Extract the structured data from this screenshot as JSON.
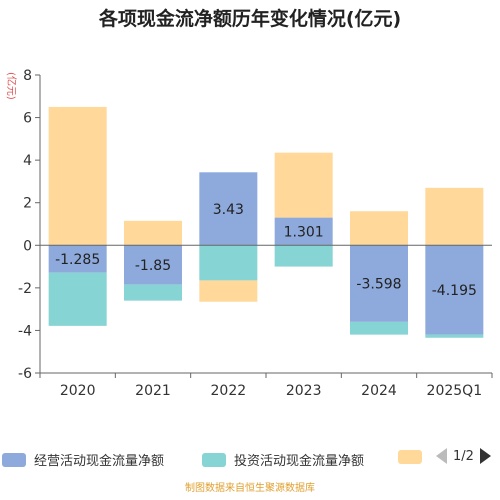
{
  "title": "各项现金流净额历年变化情况(亿元)",
  "y_unit": "(亿元)",
  "footer": "制图数据来自恒生聚源数据库",
  "legend": {
    "items": [
      {
        "label": "经营活动现金流量净额",
        "color": "#8eaadc"
      },
      {
        "label": "投资活动现金流量净额",
        "color": "#86d4d4"
      },
      {
        "label": "",
        "color": "#ffd89a"
      }
    ],
    "page": "1/2"
  },
  "chart_data": {
    "type": "bar",
    "stacked": true,
    "categories": [
      "2020",
      "2021",
      "2022",
      "2023",
      "2024",
      "2025Q1"
    ],
    "ylim": [
      -6,
      8
    ],
    "yticks": [
      -6,
      -4,
      -2,
      0,
      2,
      4,
      6,
      8
    ],
    "series": [
      {
        "name": "经营活动现金流量净额",
        "color": "#8eaadc",
        "values": [
          -1.285,
          -1.85,
          3.43,
          1.301,
          -3.598,
          -4.195
        ],
        "labels": [
          "-1.285",
          "-1.85",
          "3.43",
          "1.301",
          "-3.598",
          "-4.195"
        ]
      },
      {
        "name": "投资活动现金流量净额",
        "color": "#86d4d4",
        "values": [
          -2.5,
          -0.75,
          -1.65,
          -1.0,
          -0.6,
          -0.15
        ]
      },
      {
        "color": "#ffd89a",
        "values": [
          6.5,
          1.15,
          -1.0,
          3.05,
          1.6,
          2.7
        ]
      }
    ]
  }
}
